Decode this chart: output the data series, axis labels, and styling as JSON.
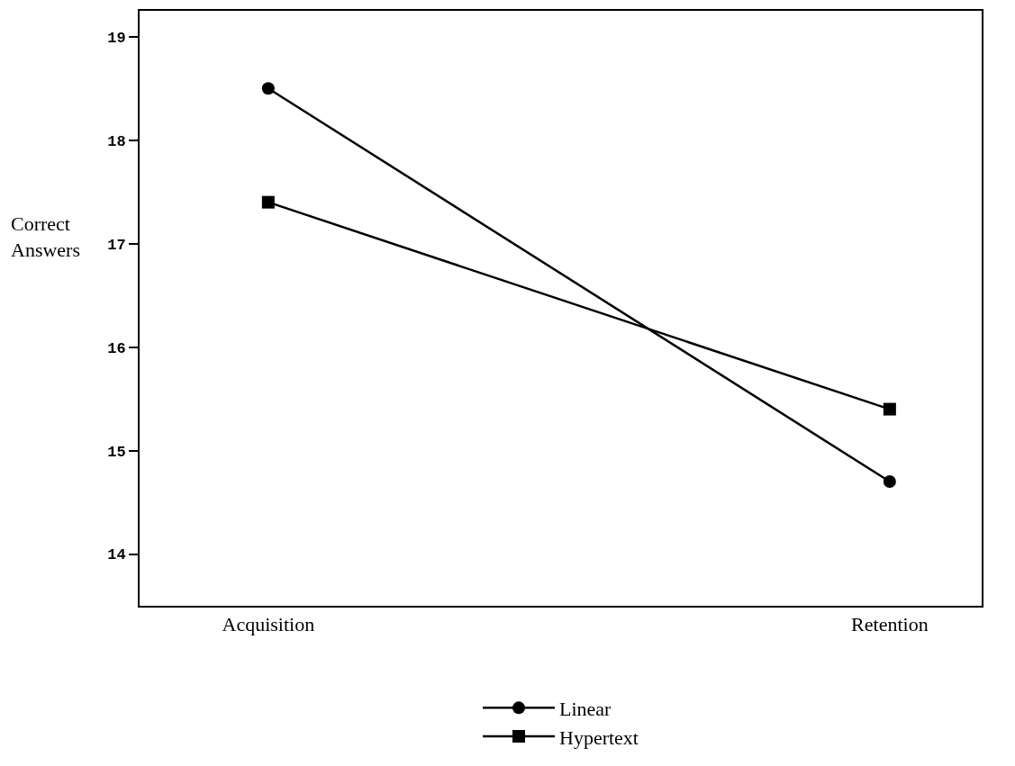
{
  "chart_data": {
    "type": "line",
    "ylabel": "Correct Answers",
    "categories": [
      "Acquisition",
      "Retention"
    ],
    "series": [
      {
        "name": "Linear",
        "color": "#000000",
        "marker": "circle",
        "values": [
          18.5,
          14.7
        ]
      },
      {
        "name": "Hypertext",
        "color": "#000000",
        "marker": "square",
        "values": [
          17.4,
          15.4
        ]
      }
    ],
    "ylim": [
      13.5,
      19.25
    ],
    "yticks": [
      14,
      15,
      16,
      17,
      18,
      19
    ],
    "grid": false,
    "legend": "bottom",
    "line_style": "solid"
  }
}
